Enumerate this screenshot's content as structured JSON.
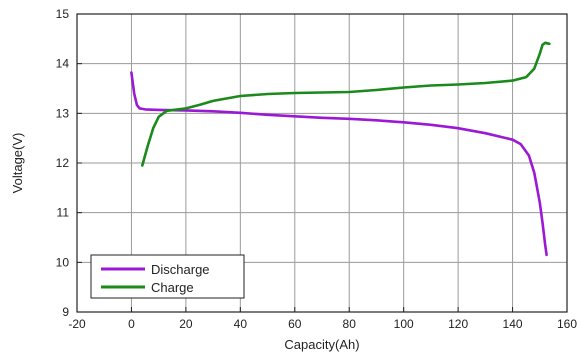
{
  "chart_data": {
    "type": "line",
    "title": "",
    "xlabel": "Capacity(Ah)",
    "ylabel": "Voltage(V)",
    "xlim": [
      -20,
      160
    ],
    "ylim": [
      9,
      15
    ],
    "xticks": [
      -20,
      0,
      20,
      40,
      60,
      80,
      100,
      120,
      140,
      160
    ],
    "yticks": [
      9,
      10,
      11,
      12,
      13,
      14,
      15
    ],
    "grid": true,
    "legend_position": "bottom-left",
    "series": [
      {
        "name": "Discharge",
        "color": "#9b19d4",
        "points": [
          [
            0,
            13.82
          ],
          [
            1,
            13.4
          ],
          [
            2,
            13.17
          ],
          [
            3,
            13.1
          ],
          [
            5,
            13.08
          ],
          [
            10,
            13.07
          ],
          [
            20,
            13.06
          ],
          [
            30,
            13.04
          ],
          [
            40,
            13.01
          ],
          [
            50,
            12.97
          ],
          [
            60,
            12.94
          ],
          [
            70,
            12.91
          ],
          [
            80,
            12.89
          ],
          [
            90,
            12.86
          ],
          [
            100,
            12.82
          ],
          [
            110,
            12.77
          ],
          [
            120,
            12.7
          ],
          [
            130,
            12.6
          ],
          [
            140,
            12.47
          ],
          [
            143,
            12.38
          ],
          [
            146,
            12.15
          ],
          [
            148,
            11.8
          ],
          [
            150,
            11.2
          ],
          [
            151,
            10.8
          ],
          [
            152,
            10.35
          ],
          [
            152.5,
            10.15
          ]
        ]
      },
      {
        "name": "Charge",
        "color": "#1a8a1a",
        "points": [
          [
            4,
            11.95
          ],
          [
            6,
            12.35
          ],
          [
            8,
            12.7
          ],
          [
            10,
            12.93
          ],
          [
            13,
            13.05
          ],
          [
            20,
            13.1
          ],
          [
            25,
            13.17
          ],
          [
            30,
            13.25
          ],
          [
            40,
            13.35
          ],
          [
            50,
            13.39
          ],
          [
            60,
            13.41
          ],
          [
            80,
            13.43
          ],
          [
            90,
            13.47
          ],
          [
            100,
            13.52
          ],
          [
            110,
            13.56
          ],
          [
            120,
            13.58
          ],
          [
            130,
            13.61
          ],
          [
            140,
            13.66
          ],
          [
            145,
            13.73
          ],
          [
            148,
            13.9
          ],
          [
            150,
            14.2
          ],
          [
            151,
            14.38
          ],
          [
            152,
            14.42
          ],
          [
            153.5,
            14.4
          ]
        ]
      }
    ]
  }
}
